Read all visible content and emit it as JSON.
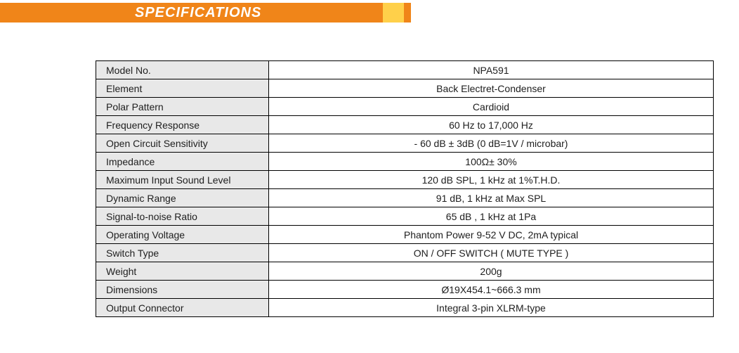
{
  "header": {
    "title": "SPECIFICATIONS",
    "bg_orange": "#f08519",
    "bg_yellow": "#ffd04a",
    "text_color": "#ffffff"
  },
  "table": {
    "label_bg": "#e8e8e8",
    "value_bg": "#ffffff",
    "border_color": "#000000",
    "font_size": 14,
    "rows": [
      {
        "label": "Model No.",
        "value": "NPA591"
      },
      {
        "label": "Element",
        "value": "Back Electret-Condenser"
      },
      {
        "label": "Polar Pattern",
        "value": "Cardioid"
      },
      {
        "label": "Frequency Response",
        "value": "60 Hz to 17,000 Hz"
      },
      {
        "label": "Open Circuit Sensitivity",
        "value": "- 60 dB ± 3dB (0 dB=1V / microbar)"
      },
      {
        "label": "Impedance",
        "value": "100Ω± 30%"
      },
      {
        "label": "Maximum Input Sound Level",
        "value": "120 dB SPL, 1 kHz at 1%T.H.D."
      },
      {
        "label": "Dynamic Range",
        "value": "91 dB, 1 kHz at Max SPL"
      },
      {
        "label": "Signal-to-noise Ratio",
        "value": "65 dB , 1 kHz at 1Pa"
      },
      {
        "label": "Operating Voltage",
        "value": "Phantom Power 9-52 V DC, 2mA typical"
      },
      {
        "label": "Switch Type",
        "value": "ON / OFF SWITCH ( MUTE TYPE )"
      },
      {
        "label": "Weight",
        "value": "200g"
      },
      {
        "label": "Dimensions",
        "value": "Ø19X454.1~666.3 mm"
      },
      {
        "label": "Output Connector",
        "value": "Integral 3-pin XLRM-type"
      }
    ]
  }
}
